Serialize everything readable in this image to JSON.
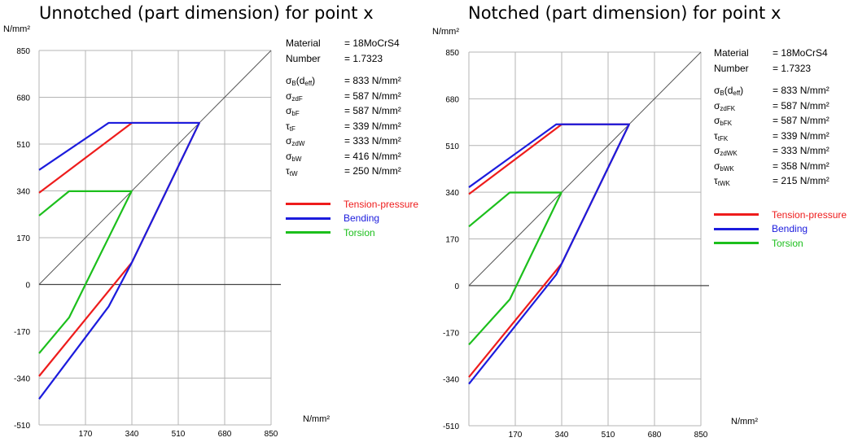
{
  "colors": {
    "tension": "#ee1c1c",
    "bending": "#1c1cdd",
    "torsion": "#1cbf1c",
    "grid": "#b4b4b4",
    "diag": "#555555"
  },
  "chart_data": [
    {
      "type": "line",
      "title": "Unnotched (part dimension) for point x",
      "ylabel": "N/mm²",
      "xlabel": "N/mm²",
      "xlim": [
        0,
        850
      ],
      "ylim": [
        -510,
        850
      ],
      "x_ticks": [
        "170",
        "340",
        "510",
        "680",
        "850"
      ],
      "y_ticks": [
        "850",
        "680",
        "510",
        "340",
        "170",
        "0",
        "-170",
        "-340",
        "-510"
      ],
      "grid": true,
      "series": [
        {
          "name": "Tension-pressure",
          "x": [
            0,
            340,
            587,
            340,
            0
          ],
          "y": [
            333,
            587,
            587,
            80,
            -333
          ]
        },
        {
          "name": "Bending",
          "x": [
            0,
            255,
            587,
            340,
            255,
            0
          ],
          "y": [
            416,
            587,
            587,
            80,
            -80,
            -416
          ]
        },
        {
          "name": "Torsion",
          "x": [
            0,
            110,
            339,
            110,
            0
          ],
          "y": [
            250,
            339,
            339,
            -120,
            -250
          ]
        }
      ],
      "material": {
        "material_label": "Material",
        "material_value": "= 18MoCrS4",
        "number_label": "Number",
        "number_value": "= 1.7323",
        "props": [
          {
            "sym": "σ",
            "sub": "B",
            "extra": "(d",
            "sub2": "eff",
            "close": ")",
            "value": "= 833  N/mm²"
          },
          {
            "sym": "σ",
            "sub": "zdF",
            "value": "= 587  N/mm²"
          },
          {
            "sym": "σ",
            "sub": "bF",
            "value": "= 587  N/mm²"
          },
          {
            "sym": "τ",
            "sub": "tF",
            "value": "= 339  N/mm²"
          },
          {
            "sym": "σ",
            "sub": "zdW",
            "value": "= 333  N/mm²"
          },
          {
            "sym": "σ",
            "sub": "bW",
            "value": "= 416  N/mm²"
          },
          {
            "sym": "τ",
            "sub": "tW",
            "value": "= 250  N/mm²"
          }
        ]
      }
    },
    {
      "type": "line",
      "title": "Notched (part dimension) for point x",
      "ylabel": "N/mm²",
      "xlabel": "N/mm²",
      "xlim": [
        0,
        850
      ],
      "ylim": [
        -510,
        850
      ],
      "x_ticks": [
        "170",
        "340",
        "510",
        "680",
        "850"
      ],
      "y_ticks": [
        "850",
        "680",
        "510",
        "340",
        "170",
        "0",
        "-170",
        "-340",
        "-510"
      ],
      "grid": true,
      "series": [
        {
          "name": "Tension-pressure",
          "x": [
            0,
            340,
            587,
            340,
            0
          ],
          "y": [
            333,
            587,
            587,
            80,
            -333
          ]
        },
        {
          "name": "Bending",
          "x": [
            0,
            320,
            587,
            340,
            320,
            0
          ],
          "y": [
            358,
            587,
            587,
            80,
            40,
            -358
          ]
        },
        {
          "name": "Torsion",
          "x": [
            0,
            150,
            339,
            150,
            0
          ],
          "y": [
            215,
            339,
            339,
            -50,
            -215
          ]
        }
      ],
      "material": {
        "material_label": "Material",
        "material_value": "= 18MoCrS4",
        "number_label": "Number",
        "number_value": "= 1.7323",
        "props": [
          {
            "sym": "σ",
            "sub": "B",
            "extra": "(d",
            "sub2": "eff",
            "close": ")",
            "value": "= 833  N/mm²"
          },
          {
            "sym": "σ",
            "sub": "zdFK",
            "value": "= 587  N/mm²"
          },
          {
            "sym": "σ",
            "sub": "bFK",
            "value": "= 587  N/mm²"
          },
          {
            "sym": "τ",
            "sub": "tFK",
            "value": "= 339  N/mm²"
          },
          {
            "sym": "σ",
            "sub": "zdWK",
            "value": "= 333  N/mm²"
          },
          {
            "sym": "σ",
            "sub": "bWK",
            "value": "= 358  N/mm²"
          },
          {
            "sym": "τ",
            "sub": "tWK",
            "value": "= 215  N/mm²"
          }
        ]
      }
    }
  ]
}
